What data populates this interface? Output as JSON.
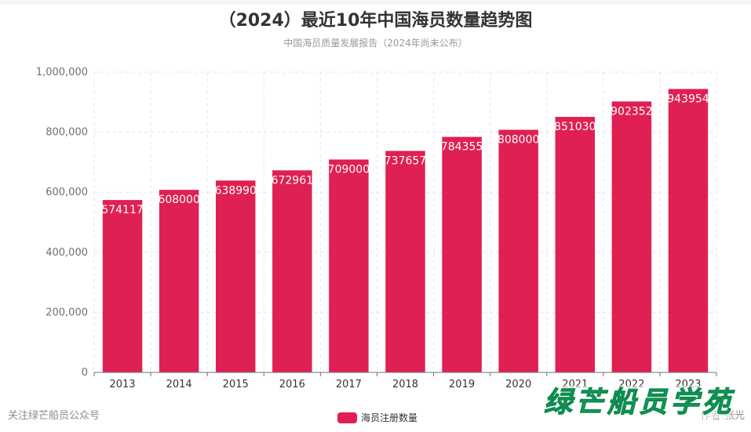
{
  "title": "（2024）最近10年中国海员数量趋势图",
  "subtitle": "中国海员质量发展报告（2024年尚未公布）",
  "footer": {
    "left": "关注绿芒船员公众号",
    "right": "作者:张光"
  },
  "watermark": {
    "chars": [
      "绿",
      "芒",
      "船",
      "员",
      "学",
      "苑"
    ],
    "color": "#22b573"
  },
  "colors": {
    "bar": "#df2052",
    "axis": "#6e7079",
    "grid": "#e0e6f1"
  },
  "chart_data": {
    "type": "bar",
    "categories": [
      "2013",
      "2014",
      "2015",
      "2016",
      "2017",
      "2018",
      "2019",
      "2020",
      "2021",
      "2022",
      "2023"
    ],
    "series": [
      {
        "name": "海员注册数量",
        "values": [
          574117,
          608000,
          638990,
          672961,
          709000,
          737657,
          784355,
          808000,
          851030,
          902352,
          943954
        ]
      }
    ],
    "ylim": [
      0,
      1000000
    ],
    "yticks": [
      0,
      200000,
      400000,
      600000,
      800000,
      1000000
    ],
    "ytick_labels": [
      "0",
      "200,000",
      "400,000",
      "600,000",
      "800,000",
      "1,000,000"
    ],
    "grid": true,
    "legend_position": "bottom-center",
    "data_labels": "inside-top"
  }
}
